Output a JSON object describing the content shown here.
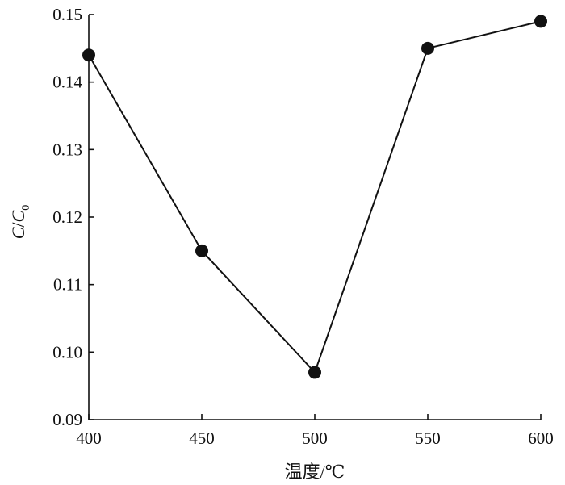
{
  "chart_data": {
    "type": "line",
    "x": [
      400,
      450,
      500,
      550,
      600
    ],
    "series": [
      {
        "values": [
          0.144,
          0.115,
          0.097,
          0.145,
          0.149
        ]
      }
    ],
    "xlabel": "温度/℃",
    "ylabel": {
      "base": "C",
      "slash": "/",
      "denom": "C",
      "denom_sub": "0"
    },
    "xlim": [
      400,
      600
    ],
    "ylim": [
      0.09,
      0.15
    ],
    "x_ticks": [
      400,
      450,
      500,
      550,
      600
    ],
    "x_tick_labels": [
      "400",
      "450",
      "500",
      "550",
      "600"
    ],
    "y_ticks": [
      0.09,
      0.1,
      0.11,
      0.12,
      0.13,
      0.14,
      0.15
    ],
    "y_tick_labels": [
      "0.09",
      "0.10",
      "0.11",
      "0.12",
      "0.13",
      "0.14",
      "0.15"
    ],
    "grid": false,
    "line_color": "#111111",
    "marker": "filled-circle"
  }
}
